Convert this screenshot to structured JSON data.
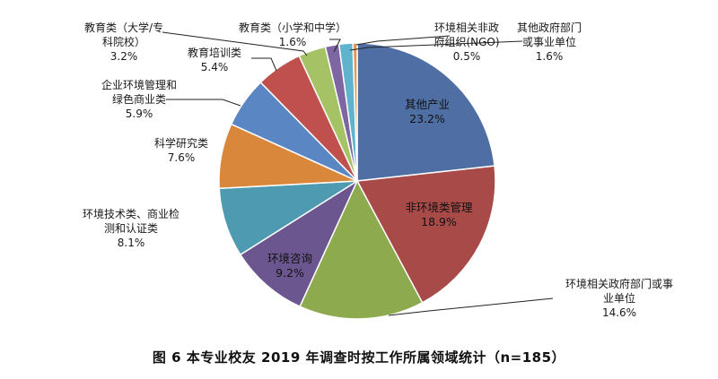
{
  "chart_data": {
    "type": "pie",
    "title": "图 6 本专业校友 2019 年调查时按工作所属领域统计（n=185）",
    "total_n": 185,
    "unit": "%",
    "slices": [
      {
        "label": "其他产业",
        "value": 23.2,
        "value_label": "23.2%",
        "color": "#4f6fa4"
      },
      {
        "label": "非环境类管理",
        "value": 18.9,
        "value_label": "18.9%",
        "color": "#a74a48"
      },
      {
        "label": "环境相关政府部门或事业单位",
        "value": 14.6,
        "value_label": "14.6%",
        "color": "#8daa4e"
      },
      {
        "label": "环境咨询",
        "value": 9.2,
        "value_label": "9.2%",
        "color": "#6c5690"
      },
      {
        "label": "环境技术类、商业检测和认证类",
        "value": 8.1,
        "value_label": "8.1%",
        "color": "#4e9bb1"
      },
      {
        "label": "科学研究类",
        "value": 7.6,
        "value_label": "7.6%",
        "color": "#d9873a"
      },
      {
        "label": "企业环境管理和绿色商业类",
        "value": 5.9,
        "value_label": "5.9%",
        "color": "#5b86c4"
      },
      {
        "label": "教育培训类",
        "value": 5.4,
        "value_label": "5.4%",
        "color": "#c0504d"
      },
      {
        "label": "教育类（大学/专科院校）",
        "value": 3.2,
        "value_label": "3.2%",
        "color": "#a5c365"
      },
      {
        "label": "教育类（小学和中学）",
        "value": 1.6,
        "value_label": "1.6%",
        "color": "#7e66a3"
      },
      {
        "label": "其他政府部门或事业单位",
        "value": 1.6,
        "value_label": "1.6%",
        "color": "#5fb3cc"
      },
      {
        "label": "环境相关非政府组织(NGO)",
        "value": 0.5,
        "value_label": "0.5%",
        "color": "#e7964a"
      }
    ]
  }
}
